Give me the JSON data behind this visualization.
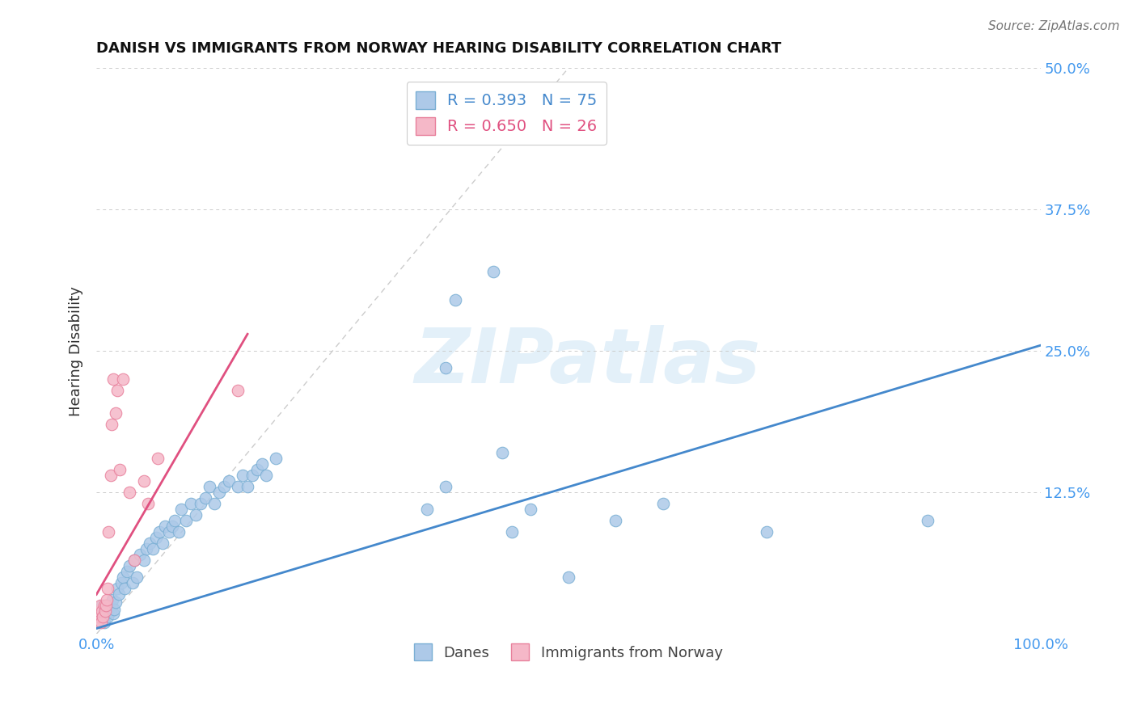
{
  "title": "DANISH VS IMMIGRANTS FROM NORWAY HEARING DISABILITY CORRELATION CHART",
  "source": "Source: ZipAtlas.com",
  "ylabel": "Hearing Disability",
  "xlim": [
    0,
    1.0
  ],
  "ylim": [
    0,
    0.5
  ],
  "xticks": [
    0.0,
    0.2,
    0.4,
    0.6,
    0.8,
    1.0
  ],
  "xtick_labels": [
    "0.0%",
    "",
    "",
    "",
    "",
    "100.0%"
  ],
  "yticks": [
    0.0,
    0.125,
    0.25,
    0.375,
    0.5
  ],
  "ytick_labels_right": [
    "",
    "12.5%",
    "25.0%",
    "37.5%",
    "50.0%"
  ],
  "watermark": "ZIPatlas",
  "danes_color": "#adc9e8",
  "danes_edge_color": "#7aafd4",
  "norway_color": "#f5b8c8",
  "norway_edge_color": "#e8809c",
  "danes_R": 0.393,
  "danes_N": 75,
  "norway_R": 0.65,
  "norway_N": 26,
  "danes_line_color": "#4488cc",
  "norway_line_color": "#e05080",
  "diagonal_color": "#cccccc",
  "danes_line_x": [
    0.0,
    1.0
  ],
  "danes_line_y": [
    0.005,
    0.255
  ],
  "norway_line_x": [
    0.0,
    0.16
  ],
  "norway_line_y": [
    0.035,
    0.265
  ],
  "danes_x": [
    0.001,
    0.002,
    0.003,
    0.004,
    0.005,
    0.006,
    0.007,
    0.008,
    0.009,
    0.01,
    0.011,
    0.012,
    0.013,
    0.014,
    0.015,
    0.016,
    0.017,
    0.018,
    0.019,
    0.02,
    0.022,
    0.024,
    0.026,
    0.028,
    0.03,
    0.032,
    0.035,
    0.038,
    0.04,
    0.043,
    0.046,
    0.05,
    0.053,
    0.056,
    0.06,
    0.063,
    0.067,
    0.07,
    0.073,
    0.077,
    0.08,
    0.083,
    0.087,
    0.09,
    0.095,
    0.1,
    0.105,
    0.11,
    0.115,
    0.12,
    0.125,
    0.13,
    0.135,
    0.14,
    0.15,
    0.155,
    0.16,
    0.165,
    0.17,
    0.175,
    0.18,
    0.19,
    0.35,
    0.37,
    0.38,
    0.43,
    0.44,
    0.46,
    0.5,
    0.55,
    0.6,
    0.71,
    0.88,
    0.37,
    0.42
  ],
  "danes_y": [
    0.01,
    0.015,
    0.02,
    0.01,
    0.02,
    0.025,
    0.015,
    0.01,
    0.02,
    0.018,
    0.025,
    0.015,
    0.02,
    0.025,
    0.02,
    0.025,
    0.03,
    0.018,
    0.022,
    0.028,
    0.04,
    0.035,
    0.045,
    0.05,
    0.04,
    0.055,
    0.06,
    0.045,
    0.065,
    0.05,
    0.07,
    0.065,
    0.075,
    0.08,
    0.075,
    0.085,
    0.09,
    0.08,
    0.095,
    0.09,
    0.095,
    0.1,
    0.09,
    0.11,
    0.1,
    0.115,
    0.105,
    0.115,
    0.12,
    0.13,
    0.115,
    0.125,
    0.13,
    0.135,
    0.13,
    0.14,
    0.13,
    0.14,
    0.145,
    0.15,
    0.14,
    0.155,
    0.11,
    0.13,
    0.295,
    0.16,
    0.09,
    0.11,
    0.05,
    0.1,
    0.115,
    0.09,
    0.1,
    0.235,
    0.32
  ],
  "norway_x": [
    0.001,
    0.002,
    0.003,
    0.004,
    0.005,
    0.006,
    0.007,
    0.008,
    0.009,
    0.01,
    0.011,
    0.012,
    0.013,
    0.015,
    0.016,
    0.018,
    0.02,
    0.022,
    0.025,
    0.028,
    0.035,
    0.04,
    0.05,
    0.055,
    0.065,
    0.15
  ],
  "norway_y": [
    0.01,
    0.015,
    0.02,
    0.025,
    0.01,
    0.02,
    0.015,
    0.025,
    0.02,
    0.025,
    0.03,
    0.04,
    0.09,
    0.14,
    0.185,
    0.225,
    0.195,
    0.215,
    0.145,
    0.225,
    0.125,
    0.065,
    0.135,
    0.115,
    0.155,
    0.215
  ]
}
